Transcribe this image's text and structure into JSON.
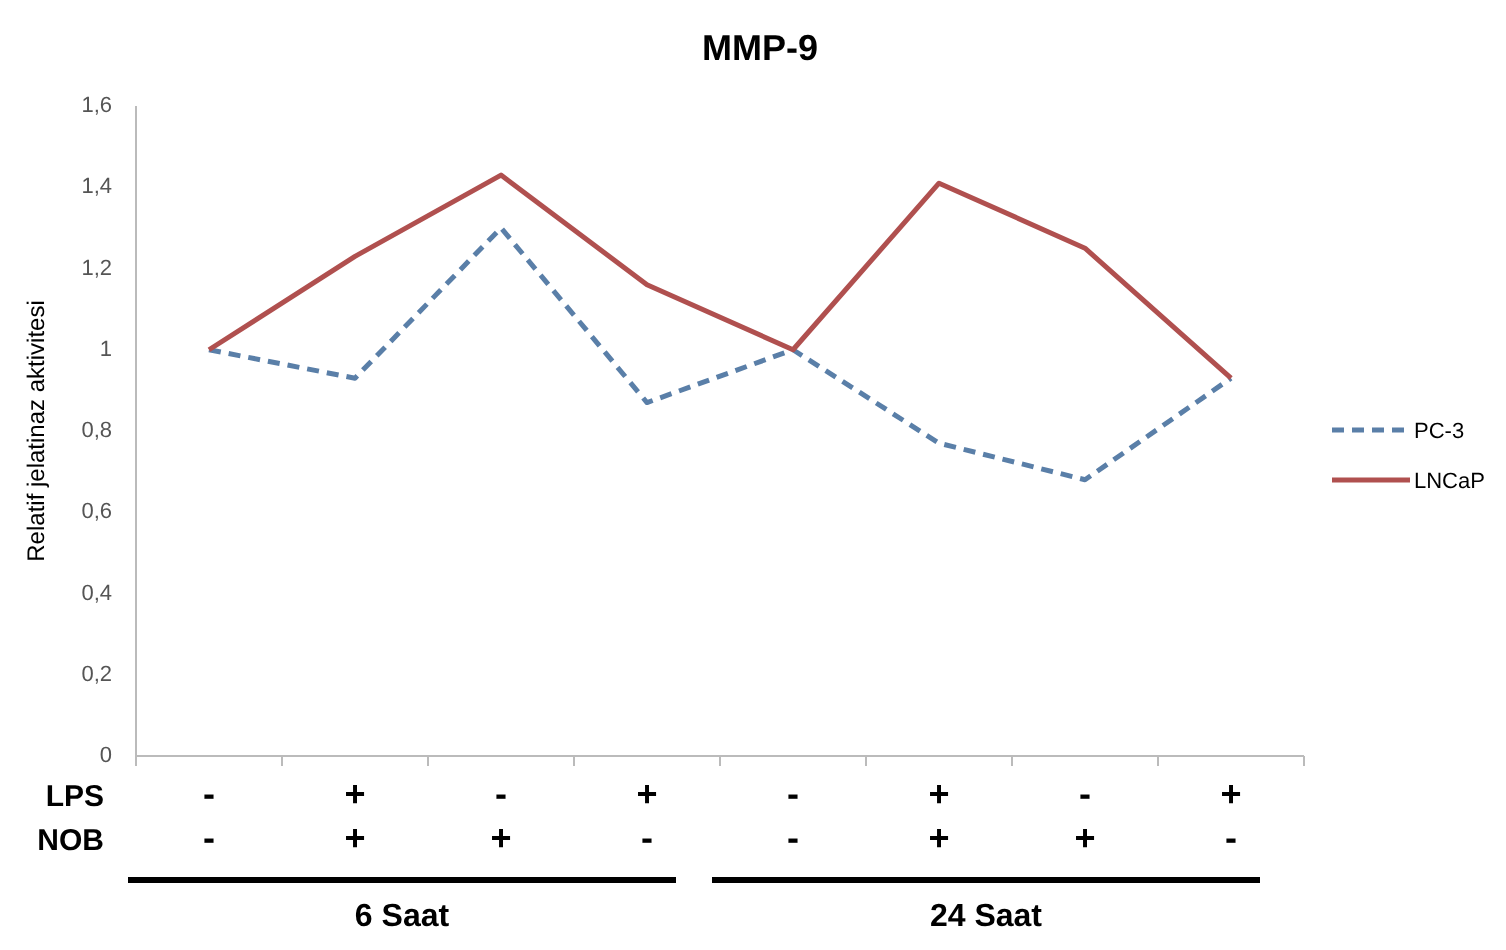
{
  "chart_data": {
    "type": "line",
    "title": "MMP-9",
    "ylabel": "Relatif jelatinaz aktivitesi",
    "categories": [
      null,
      null,
      null,
      null,
      null,
      null,
      null,
      null
    ],
    "ylim": [
      0,
      1.6
    ],
    "yticks": [
      {
        "value": 0,
        "label": "0"
      },
      {
        "value": 0.2,
        "label": "0,2"
      },
      {
        "value": 0.4,
        "label": "0,4"
      },
      {
        "value": 0.6,
        "label": "0,6"
      },
      {
        "value": 0.8,
        "label": "0,8"
      },
      {
        "value": 1,
        "label": "1"
      },
      {
        "value": 1.2,
        "label": "1,2"
      },
      {
        "value": 1.4,
        "label": "1,4"
      },
      {
        "value": 1.6,
        "label": "1,6"
      }
    ],
    "grid": false,
    "legend": "right",
    "marker": "none",
    "series": [
      {
        "name": "PC-3",
        "color": "#5a7fa8",
        "line_style": "dashed",
        "values": [
          1,
          0.93,
          1.3,
          0.87,
          1,
          0.77,
          0.68,
          0.93
        ]
      },
      {
        "name": "LNCaP",
        "color": "#b0504f",
        "line_style": "solid",
        "values": [
          1,
          1.23,
          1.43,
          1.16,
          1,
          1.41,
          1.25,
          0.93
        ]
      }
    ],
    "annotations": [
      "LPS",
      "NOB",
      "-",
      "+",
      "-",
      "+",
      "-",
      "+",
      "-",
      "+",
      "-",
      "+",
      "+",
      "-",
      "-",
      "+",
      "+",
      "-",
      "6 Saat",
      "24 Saat"
    ]
  }
}
